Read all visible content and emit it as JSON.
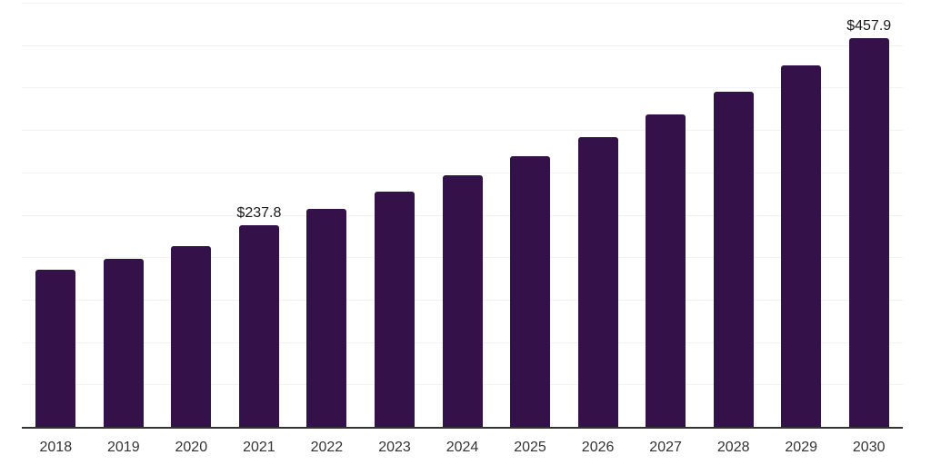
{
  "chart_data": {
    "type": "bar",
    "title": "",
    "xlabel": "",
    "ylabel": "",
    "categories": [
      "2018",
      "2019",
      "2020",
      "2021",
      "2022",
      "2023",
      "2024",
      "2025",
      "2026",
      "2027",
      "2028",
      "2029",
      "2030"
    ],
    "values": [
      185.3,
      197.6,
      213.0,
      237.8,
      256.7,
      276.9,
      296.9,
      318.9,
      341.2,
      367.9,
      395.3,
      425.8,
      457.9
    ],
    "data_labels": [
      {
        "category": "2021",
        "text": "$237.8"
      },
      {
        "category": "2030",
        "text": "$457.9"
      }
    ],
    "ylim": [
      0,
      500
    ],
    "grid_step": 50,
    "grid": true,
    "legend": false,
    "y_axis_labels_visible": false,
    "colors": {
      "bar": "#341249",
      "gridline": "#f2f2f2",
      "axis": "#333333",
      "tick_label": "#333333",
      "data_label": "#1a1a1a",
      "background": "#ffffff"
    }
  }
}
